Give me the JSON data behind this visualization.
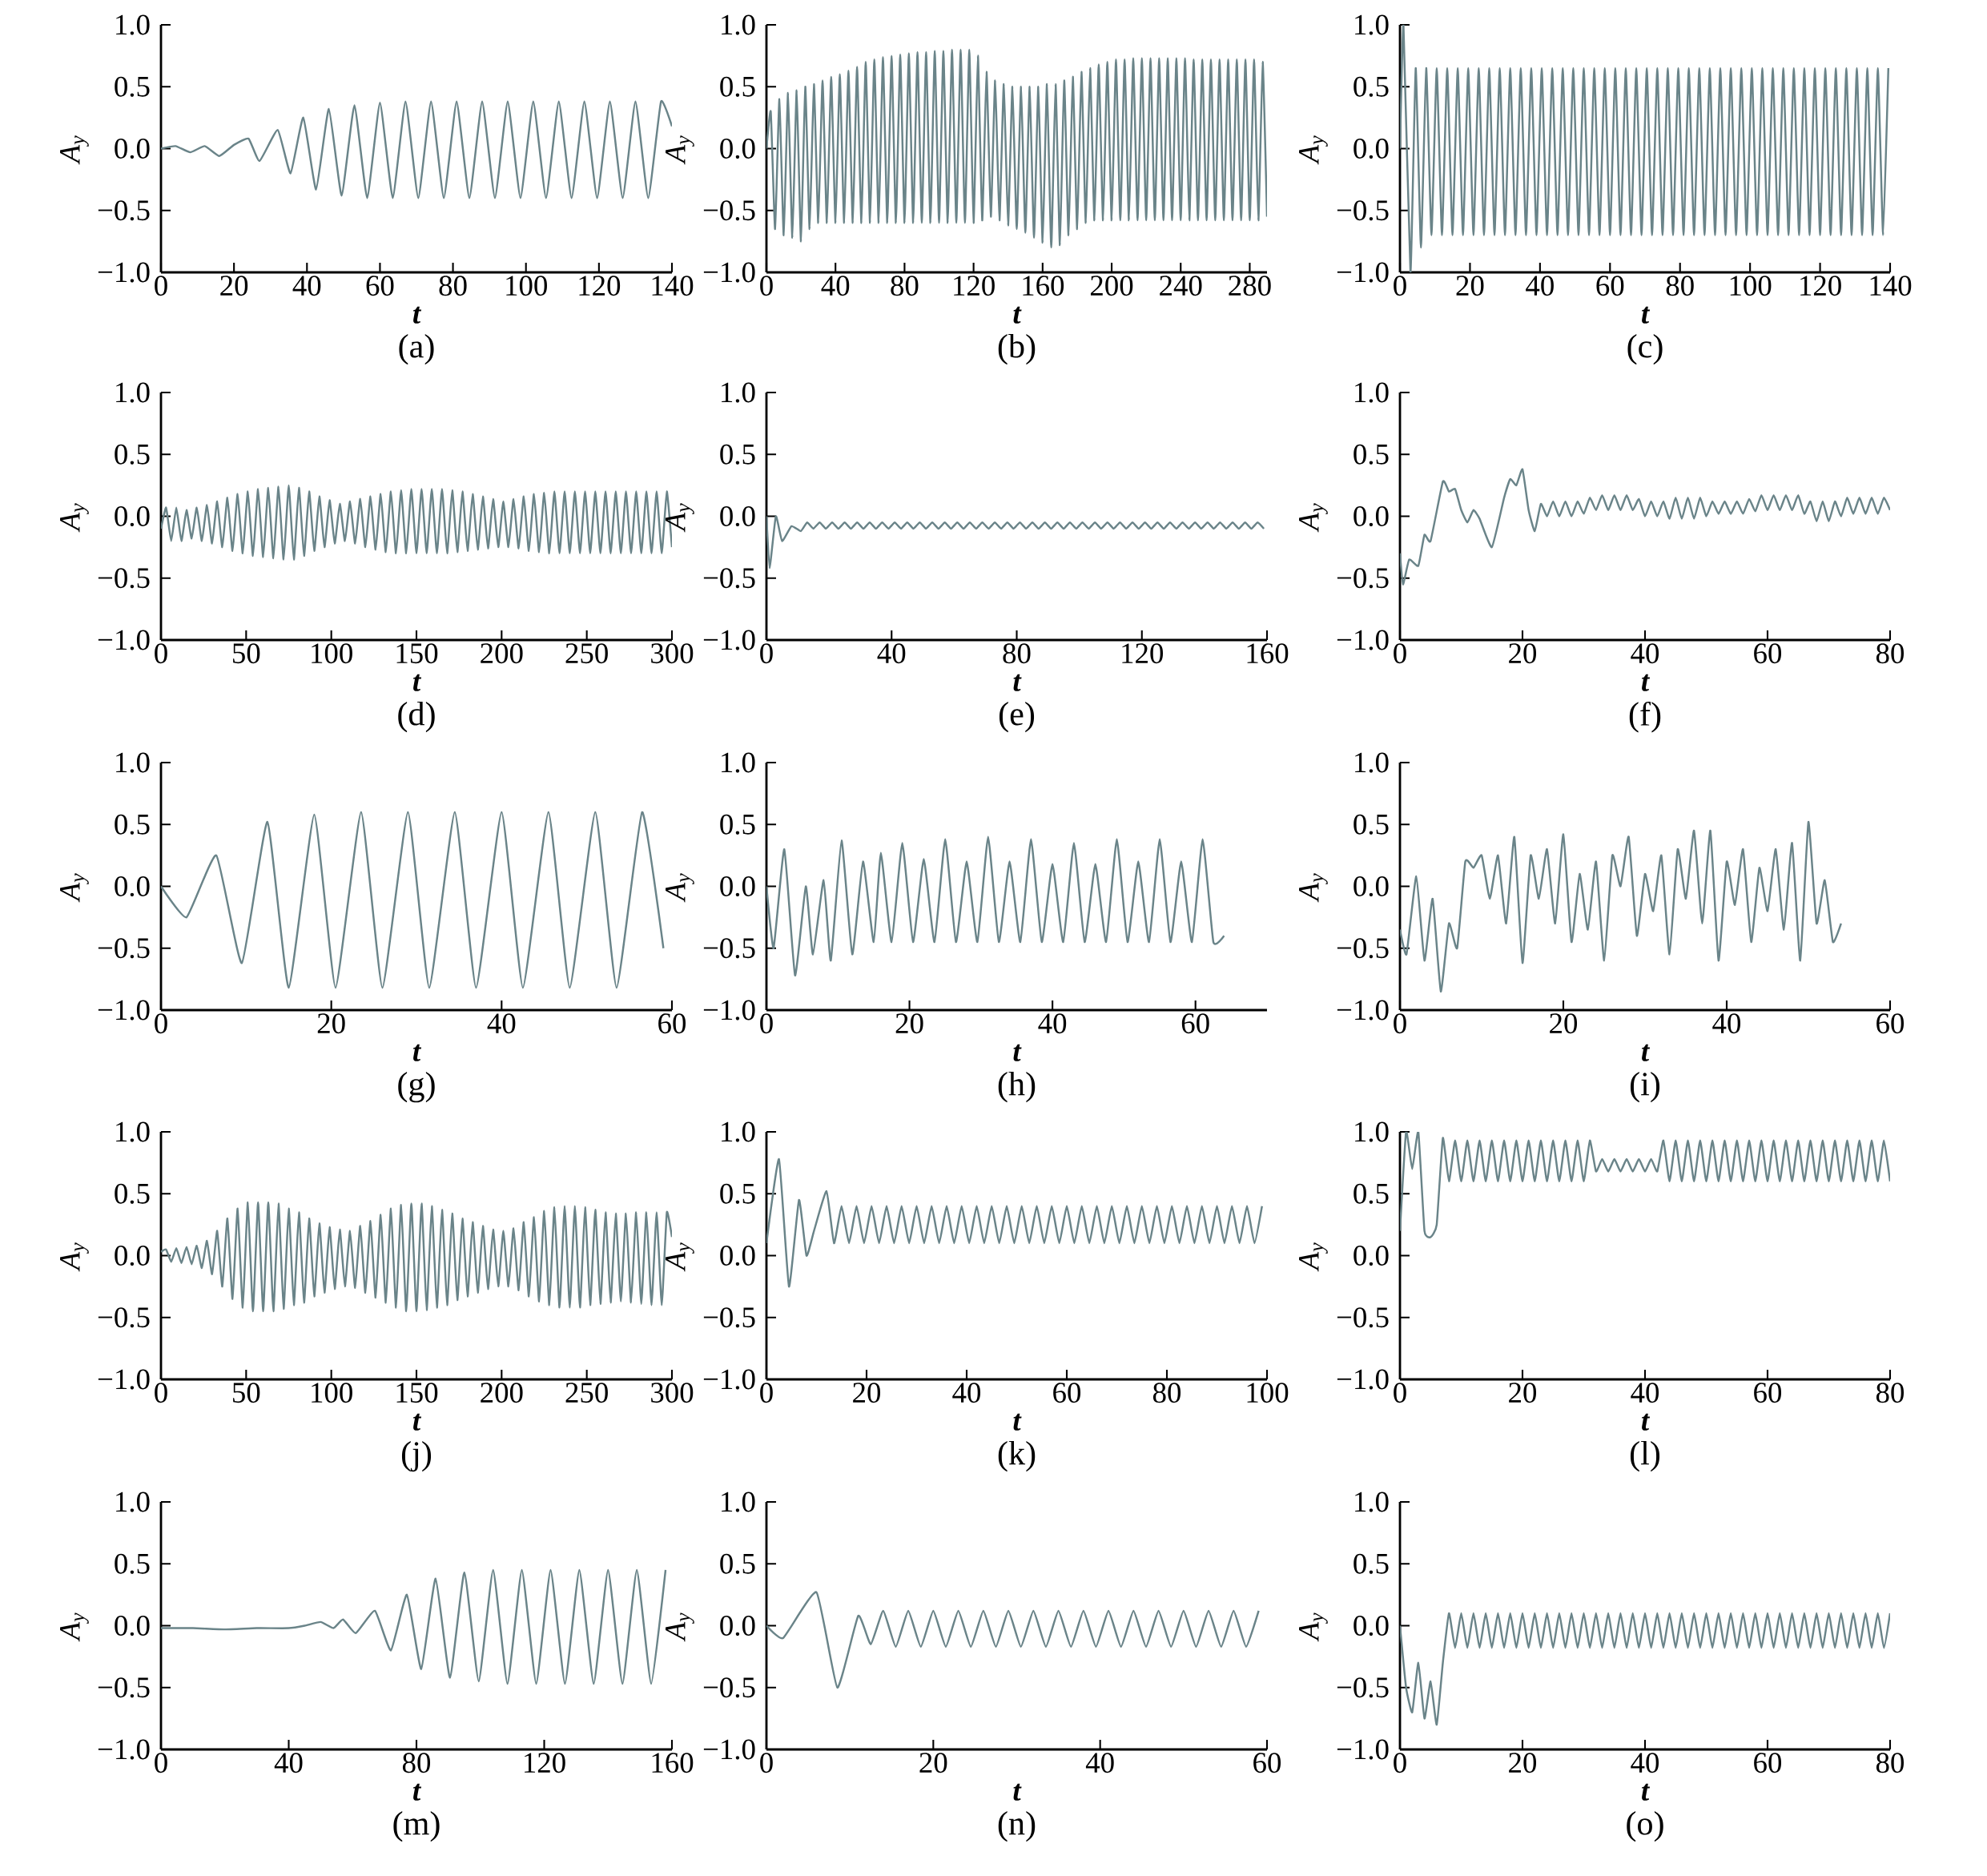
{
  "chart_data": [
    {
      "type": "line",
      "title": "(a)",
      "xlabel": "t",
      "ylabel": "A$_{y}$",
      "color": "#6a8489",
      "xlim": [
        0,
        140
      ],
      "xticks": [
        0,
        20,
        40,
        60,
        80,
        100,
        120,
        140
      ],
      "ylim": [
        -1,
        1
      ],
      "yticks": [
        {
          "value": -1,
          "label": "−1.0"
        },
        {
          "value": -0.5,
          "label": "−0.5"
        },
        {
          "value": 0,
          "label": "0.0"
        },
        {
          "value": 0.5,
          "label": "0.5"
        },
        {
          "value": 1,
          "label": "1.0"
        }
      ],
      "x": [
        0,
        4,
        8,
        12,
        16,
        20,
        24,
        27,
        32,
        35.5,
        39,
        42.5,
        46,
        49.5,
        53,
        56.5,
        60,
        63.5,
        67,
        70.5,
        74,
        77.5,
        81,
        84.5,
        88,
        91.5,
        95,
        98.5,
        102,
        105.5,
        109,
        112.5,
        116,
        119.5,
        123,
        126.5,
        130,
        133.5,
        137,
        140
      ],
      "values": [
        0,
        0.02,
        -0.03,
        0.02,
        -0.06,
        0.03,
        0.08,
        -0.1,
        0.15,
        -0.2,
        0.25,
        -0.33,
        0.32,
        -0.38,
        0.35,
        -0.4,
        0.37,
        -0.4,
        0.38,
        -0.4,
        0.38,
        -0.4,
        0.38,
        -0.4,
        0.38,
        -0.4,
        0.38,
        -0.4,
        0.38,
        -0.4,
        0.38,
        -0.4,
        0.38,
        -0.4,
        0.38,
        -0.4,
        0.38,
        -0.4,
        0.38,
        0.18
      ]
    },
    {
      "type": "line",
      "title": "(b)",
      "xlabel": "t",
      "ylabel": "A$_{y}$",
      "color": "#6a8489",
      "xlim": [
        0,
        290
      ],
      "xticks": [
        0,
        40,
        80,
        120,
        160,
        200,
        240,
        280
      ],
      "ylim": [
        -1,
        1
      ],
      "yticks": [
        {
          "value": -1,
          "label": "−1.0"
        },
        {
          "value": -0.5,
          "label": "−0.5"
        },
        {
          "value": 0,
          "label": "0.0"
        },
        {
          "value": 0.5,
          "label": "0.5"
        },
        {
          "value": 1,
          "label": "1.0"
        }
      ],
      "x": [
        0,
        2.5,
        5,
        7.5,
        10,
        12.5,
        15,
        17.5,
        20,
        22.5,
        25,
        27.5,
        30,
        32.5,
        35,
        37.5,
        40,
        42.5,
        45,
        47.5,
        50,
        52.5,
        55,
        57.5,
        60,
        62.5,
        65,
        67.5,
        70,
        72.5,
        75,
        77.5,
        80,
        82.5,
        85,
        87.5,
        90,
        92.5,
        95,
        97.5,
        100,
        102.5,
        105,
        107.5,
        110,
        112.5,
        115,
        117.5,
        120,
        122.5,
        125,
        127.5,
        130,
        132.5,
        135,
        137.5,
        140,
        142.5,
        145,
        147.5,
        150,
        152.5,
        155,
        157.5,
        160,
        162.5,
        165,
        167.5,
        170,
        172.5,
        175,
        177.5,
        180,
        182.5,
        185,
        187.5,
        190,
        192.5,
        195,
        197.5,
        200,
        202.5,
        205,
        207.5,
        210,
        212.5,
        215,
        217.5,
        220,
        222.5,
        225,
        227.5,
        230,
        232.5,
        235,
        237.5,
        240,
        242.5,
        245,
        247.5,
        250,
        252.5,
        255,
        257.5,
        260,
        262.5,
        265,
        267.5,
        270,
        272.5,
        275,
        277.5,
        280,
        282.5,
        285,
        287.5,
        290
      ],
      "values": [
        0,
        0.3,
        -0.65,
        0.4,
        -0.7,
        0.45,
        -0.72,
        0.47,
        -0.75,
        0.5,
        -0.65,
        0.52,
        -0.6,
        0.55,
        -0.6,
        0.58,
        -0.6,
        0.6,
        -0.6,
        0.63,
        -0.6,
        0.66,
        -0.6,
        0.7,
        -0.6,
        0.72,
        -0.6,
        0.74,
        -0.6,
        0.75,
        -0.6,
        0.76,
        -0.6,
        0.77,
        -0.6,
        0.78,
        -0.6,
        0.78,
        -0.6,
        0.79,
        -0.6,
        0.79,
        -0.6,
        0.8,
        -0.6,
        0.8,
        -0.6,
        0.8,
        -0.6,
        0.75,
        -0.58,
        0.62,
        -0.55,
        0.55,
        -0.58,
        0.52,
        -0.62,
        0.5,
        -0.65,
        0.5,
        -0.68,
        0.5,
        -0.72,
        0.5,
        -0.76,
        0.52,
        -0.8,
        0.52,
        -0.78,
        0.55,
        -0.7,
        0.58,
        -0.65,
        0.62,
        -0.6,
        0.65,
        -0.58,
        0.68,
        -0.58,
        0.7,
        -0.58,
        0.72,
        -0.58,
        0.72,
        -0.58,
        0.73,
        -0.58,
        0.73,
        -0.58,
        0.73,
        -0.58,
        0.73,
        -0.58,
        0.73,
        -0.58,
        0.73,
        -0.58,
        0.73,
        -0.58,
        0.72,
        -0.58,
        0.72,
        -0.58,
        0.72,
        -0.58,
        0.72,
        -0.58,
        0.72,
        -0.58,
        0.72,
        -0.58,
        0.72,
        -0.58,
        0.72,
        -0.58,
        0.7,
        -0.55
      ]
    },
    {
      "type": "line",
      "title": "(c)",
      "xlabel": "t",
      "ylabel": "A$_{y}$",
      "color": "#6a8489",
      "xlim": [
        0,
        140
      ],
      "xticks": [
        0,
        20,
        40,
        60,
        80,
        100,
        120,
        140
      ],
      "ylim": [
        -1,
        1
      ],
      "yticks": [
        {
          "value": -1,
          "label": "−1.0"
        },
        {
          "value": -0.5,
          "label": "−0.5"
        },
        {
          "value": 0,
          "label": "0.0"
        },
        {
          "value": 0.5,
          "label": "0.5"
        },
        {
          "value": 1,
          "label": "1.0"
        }
      ],
      "x": [
        0,
        1,
        3,
        4.5,
        6,
        7.5,
        9,
        10.5,
        12,
        13.5,
        15,
        16.5,
        18,
        19.5,
        21,
        22.5,
        24,
        25.5,
        27,
        28.5,
        30,
        31.5,
        33,
        34.5,
        36,
        37.5,
        39,
        40.5,
        42,
        43.5,
        45,
        46.5,
        48,
        49.5,
        51,
        52.5,
        54,
        55.5,
        57,
        58.5,
        60,
        61.5,
        63,
        64.5,
        66,
        67.5,
        69,
        70.5,
        72,
        73.5,
        75,
        76.5,
        78,
        79.5,
        81,
        82.5,
        84,
        85.5,
        87,
        88.5,
        90,
        91.5,
        93,
        94.5,
        96,
        97.5,
        99,
        100.5,
        102,
        103.5,
        105,
        106.5,
        108,
        109.5,
        111,
        112.5,
        114,
        115.5,
        117,
        118.5,
        120,
        121.5,
        123,
        124.5,
        126,
        127.5,
        129,
        130.5,
        132,
        133.5,
        135,
        136.5,
        138,
        139.5
      ],
      "values": [
        0,
        1,
        -1,
        0.65,
        -0.8,
        0.65,
        -0.7,
        0.65,
        -0.7,
        0.65,
        -0.7,
        0.65,
        -0.7,
        0.65,
        -0.7,
        0.65,
        -0.7,
        0.65,
        -0.7,
        0.65,
        -0.7,
        0.65,
        -0.7,
        0.65,
        -0.7,
        0.65,
        -0.7,
        0.65,
        -0.7,
        0.65,
        -0.7,
        0.65,
        -0.7,
        0.65,
        -0.7,
        0.65,
        -0.7,
        0.65,
        -0.7,
        0.65,
        -0.7,
        0.65,
        -0.7,
        0.65,
        -0.7,
        0.65,
        -0.7,
        0.65,
        -0.7,
        0.65,
        -0.7,
        0.65,
        -0.7,
        0.65,
        -0.7,
        0.65,
        -0.7,
        0.65,
        -0.7,
        0.65,
        -0.7,
        0.65,
        -0.7,
        0.65,
        -0.7,
        0.65,
        -0.7,
        0.65,
        -0.7,
        0.65,
        -0.7,
        0.65,
        -0.7,
        0.65,
        -0.7,
        0.65,
        -0.7,
        0.65,
        -0.7,
        0.65,
        -0.7,
        0.65,
        -0.7,
        0.65,
        -0.7,
        0.65,
        -0.7,
        0.65,
        -0.7,
        0.65,
        -0.7,
        0.65,
        -0.7,
        0.65
      ]
    },
    {
      "type": "line",
      "title": "(d)",
      "xlabel": "t",
      "ylabel": "A$_{y}$",
      "color": "#6a8489",
      "xlim": [
        0,
        300
      ],
      "xticks": [
        0,
        50,
        100,
        150,
        200,
        250,
        300
      ],
      "ylim": [
        -1,
        1
      ],
      "yticks": [
        {
          "value": -1,
          "label": "−1.0"
        },
        {
          "value": -0.5,
          "label": "−0.5"
        },
        {
          "value": 0,
          "label": "0.0"
        },
        {
          "value": 0.5,
          "label": "0.5"
        },
        {
          "value": 1,
          "label": "1.0"
        }
      ],
      "x": [
        0,
        3,
        6,
        9,
        12,
        15,
        18,
        21,
        24,
        27,
        30,
        33,
        36,
        39,
        42,
        45,
        48,
        51,
        54,
        57,
        60,
        63,
        66,
        69,
        72,
        75,
        78,
        81,
        84,
        87,
        90,
        93,
        96,
        99,
        102,
        105,
        108,
        111,
        114,
        117,
        120,
        123,
        126,
        129,
        132,
        135,
        138,
        141,
        144,
        147,
        150,
        153,
        156,
        159,
        162,
        165,
        168,
        171,
        174,
        177,
        180,
        183,
        186,
        189,
        192,
        195,
        198,
        201,
        204,
        207,
        210,
        213,
        216,
        219,
        222,
        225,
        228,
        231,
        234,
        237,
        240,
        243,
        246,
        249,
        252,
        255,
        258,
        261,
        264,
        267,
        270,
        273,
        276,
        279,
        282,
        285,
        288,
        291,
        294,
        297,
        300
      ],
      "values": [
        -0.1,
        0.07,
        -0.2,
        0.07,
        -0.2,
        0.05,
        -0.18,
        0.07,
        -0.2,
        0.09,
        -0.22,
        0.12,
        -0.25,
        0.15,
        -0.28,
        0.18,
        -0.3,
        0.2,
        -0.32,
        0.22,
        -0.33,
        0.23,
        -0.34,
        0.24,
        -0.35,
        0.25,
        -0.35,
        0.23,
        -0.32,
        0.2,
        -0.28,
        0.16,
        -0.25,
        0.13,
        -0.22,
        0.1,
        -0.2,
        0.12,
        -0.22,
        0.14,
        -0.25,
        0.16,
        -0.27,
        0.18,
        -0.29,
        0.2,
        -0.3,
        0.21,
        -0.3,
        0.22,
        -0.3,
        0.22,
        -0.3,
        0.22,
        -0.3,
        0.22,
        -0.3,
        0.21,
        -0.29,
        0.2,
        -0.28,
        0.18,
        -0.27,
        0.16,
        -0.26,
        0.14,
        -0.25,
        0.12,
        -0.25,
        0.14,
        -0.26,
        0.16,
        -0.28,
        0.18,
        -0.29,
        0.19,
        -0.3,
        0.2,
        -0.3,
        0.2,
        -0.3,
        0.2,
        -0.3,
        0.2,
        -0.3,
        0.2,
        -0.3,
        0.2,
        -0.3,
        0.2,
        -0.3,
        0.2,
        -0.3,
        0.2,
        -0.3,
        0.2,
        -0.3,
        0.2,
        -0.3,
        0.2,
        -0.25
      ]
    },
    {
      "type": "line",
      "title": "(e)",
      "xlabel": "t",
      "ylabel": "A$_{y}$",
      "color": "#6a8489",
      "xlim": [
        0,
        160
      ],
      "xticks": [
        0,
        40,
        80,
        120,
        160
      ],
      "ylim": [
        -1,
        1
      ],
      "yticks": [
        {
          "value": -1,
          "label": "−1.0"
        },
        {
          "value": -0.5,
          "label": "−0.5"
        },
        {
          "value": 0,
          "label": "0.0"
        },
        {
          "value": 0.5,
          "label": "0.5"
        },
        {
          "value": 1,
          "label": "1.0"
        }
      ],
      "x": [
        0,
        1,
        3,
        5,
        8,
        11,
        13,
        15,
        17,
        19,
        21,
        23,
        25,
        27,
        29,
        31,
        33,
        35,
        37,
        39,
        41,
        43,
        45,
        47,
        49,
        51,
        53,
        55,
        57,
        59,
        61,
        63,
        65,
        67,
        69,
        71,
        73,
        75,
        77,
        79,
        81,
        83,
        85,
        87,
        89,
        91,
        93,
        95,
        97,
        99,
        101,
        103,
        105,
        107,
        109,
        111,
        113,
        115,
        117,
        119,
        121,
        123,
        125,
        127,
        129,
        131,
        133,
        135,
        137,
        139,
        141,
        143,
        145,
        147,
        149,
        151,
        153,
        155,
        157,
        159
      ],
      "values": [
        0,
        -0.42,
        0,
        -0.2,
        -0.08,
        -0.12,
        -0.05,
        -0.1,
        -0.05,
        -0.1,
        -0.05,
        -0.1,
        -0.05,
        -0.1,
        -0.05,
        -0.1,
        -0.05,
        -0.1,
        -0.05,
        -0.1,
        -0.05,
        -0.1,
        -0.05,
        -0.1,
        -0.05,
        -0.1,
        -0.05,
        -0.1,
        -0.05,
        -0.1,
        -0.05,
        -0.1,
        -0.05,
        -0.1,
        -0.05,
        -0.1,
        -0.05,
        -0.1,
        -0.05,
        -0.1,
        -0.05,
        -0.1,
        -0.05,
        -0.1,
        -0.05,
        -0.1,
        -0.05,
        -0.1,
        -0.05,
        -0.1,
        -0.05,
        -0.1,
        -0.05,
        -0.1,
        -0.05,
        -0.1,
        -0.05,
        -0.1,
        -0.05,
        -0.1,
        -0.05,
        -0.1,
        -0.05,
        -0.1,
        -0.05,
        -0.1,
        -0.05,
        -0.1,
        -0.05,
        -0.1,
        -0.05,
        -0.1,
        -0.05,
        -0.1,
        -0.05,
        -0.1,
        -0.05,
        -0.1,
        -0.05,
        -0.1
      ]
    },
    {
      "type": "line",
      "title": "(f)",
      "xlabel": "t",
      "ylabel": "A$_{y}$",
      "color": "#6a8489",
      "xlim": [
        0,
        80
      ],
      "xticks": [
        0,
        20,
        40,
        60,
        80
      ],
      "ylim": [
        -1,
        1
      ],
      "yticks": [
        {
          "value": -1,
          "label": "−1.0"
        },
        {
          "value": -0.5,
          "label": "−0.5"
        },
        {
          "value": 0,
          "label": "0.0"
        },
        {
          "value": 0.5,
          "label": "0.5"
        },
        {
          "value": 1,
          "label": "1.0"
        }
      ],
      "x": [
        0,
        0.5,
        1.5,
        3,
        4,
        5,
        7,
        8,
        9,
        10,
        11,
        12,
        13,
        15,
        17,
        18,
        19,
        20,
        21,
        22,
        23,
        24,
        25,
        26,
        27,
        28,
        29,
        30,
        31,
        32,
        33,
        34,
        35,
        36,
        37,
        38,
        39,
        40,
        41,
        42,
        43,
        44,
        45,
        46,
        47,
        48,
        49,
        50,
        51,
        52,
        53,
        54,
        55,
        56,
        57,
        58,
        59,
        60,
        61,
        62,
        63,
        64,
        65,
        66,
        67,
        68,
        69,
        70,
        71,
        72,
        73,
        74,
        75,
        76,
        77,
        78,
        79,
        80
      ],
      "values": [
        -0.3,
        -0.55,
        -0.35,
        -0.4,
        -0.15,
        -0.2,
        0.28,
        0.2,
        0.22,
        0.05,
        -0.05,
        0.05,
        -0.02,
        -0.25,
        0.15,
        0.3,
        0.25,
        0.38,
        0.05,
        -0.12,
        0.1,
        0,
        0.12,
        0,
        0.12,
        0,
        0.12,
        0.02,
        0.15,
        0.05,
        0.17,
        0.05,
        0.17,
        0.05,
        0.17,
        0.05,
        0.14,
        0,
        0.12,
        0,
        0.12,
        -0.02,
        0.15,
        -0.02,
        0.15,
        -0.02,
        0.15,
        0,
        0.12,
        0.02,
        0.12,
        0.02,
        0.12,
        0.02,
        0.14,
        0.04,
        0.17,
        0.05,
        0.17,
        0.05,
        0.17,
        0.05,
        0.17,
        0.02,
        0.12,
        -0.04,
        0.12,
        -0.04,
        0.12,
        0,
        0.15,
        0.02,
        0.15,
        0.02,
        0.15,
        0.02,
        0.15,
        0.05
      ]
    },
    {
      "type": "line",
      "title": "(g)",
      "xlabel": "t",
      "ylabel": "A$_{y}$",
      "color": "#6a8489",
      "xlim": [
        0,
        60
      ],
      "xticks": [
        0,
        20,
        40,
        60
      ],
      "ylim": [
        -1,
        1
      ],
      "yticks": [
        {
          "value": -1,
          "label": "−1.0"
        },
        {
          "value": -0.5,
          "label": "−0.5"
        },
        {
          "value": 0,
          "label": "0.0"
        },
        {
          "value": 0.5,
          "label": "0.5"
        },
        {
          "value": 1,
          "label": "1.0"
        }
      ],
      "x": [
        0,
        3,
        6.5,
        9.5,
        12.5,
        15,
        18,
        20.5,
        23.5,
        26,
        29,
        31.5,
        34.5,
        37,
        40,
        42.5,
        45.5,
        48,
        51,
        53.5,
        56.5,
        59
      ],
      "values": [
        0,
        -0.25,
        0.25,
        -0.62,
        0.52,
        -0.82,
        0.58,
        -0.82,
        0.6,
        -0.82,
        0.6,
        -0.82,
        0.6,
        -0.82,
        0.6,
        -0.82,
        0.6,
        -0.82,
        0.6,
        -0.82,
        0.6,
        -0.5
      ]
    },
    {
      "type": "line",
      "title": "(h)",
      "xlabel": "t",
      "ylabel": "A$_{y}$",
      "color": "#6a8489",
      "xlim": [
        0,
        70
      ],
      "xticks": [
        0,
        20,
        40,
        60
      ],
      "ylim": [
        -1,
        1
      ],
      "yticks": [
        {
          "value": -1,
          "label": "−1.0"
        },
        {
          "value": -0.5,
          "label": "−0.5"
        },
        {
          "value": 0,
          "label": "0.0"
        },
        {
          "value": 0.5,
          "label": "0.5"
        },
        {
          "value": 1,
          "label": "1.0"
        }
      ],
      "x": [
        0,
        1,
        2.5,
        4,
        5.5,
        6.5,
        8,
        9,
        10.5,
        12,
        13.5,
        15,
        16,
        17.5,
        19,
        20.5,
        22,
        23.5,
        25,
        26.5,
        28,
        29.5,
        31,
        32.5,
        34,
        35.5,
        37,
        38.5,
        40,
        41.5,
        43,
        44.5,
        46,
        47.5,
        49,
        50.5,
        52,
        53.5,
        55,
        56.5,
        58,
        59.5,
        61,
        62.5,
        64
      ],
      "values": [
        0,
        -0.5,
        0.3,
        -0.72,
        0,
        -0.55,
        0.05,
        -0.6,
        0.37,
        -0.55,
        0.2,
        -0.45,
        0.27,
        -0.45,
        0.35,
        -0.45,
        0.22,
        -0.45,
        0.38,
        -0.45,
        0.2,
        -0.45,
        0.4,
        -0.45,
        0.2,
        -0.45,
        0.38,
        -0.45,
        0.18,
        -0.45,
        0.35,
        -0.45,
        0.18,
        -0.45,
        0.38,
        -0.45,
        0.2,
        -0.45,
        0.38,
        -0.45,
        0.2,
        -0.45,
        0.38,
        -0.45,
        -0.4
      ]
    },
    {
      "type": "line",
      "title": "(i)",
      "xlabel": "t",
      "ylabel": "A$_{y}$",
      "color": "#6a8489",
      "xlim": [
        0,
        60
      ],
      "xticks": [
        0,
        20,
        40,
        60
      ],
      "ylim": [
        -1,
        1
      ],
      "yticks": [
        {
          "value": -1,
          "label": "−1.0"
        },
        {
          "value": -0.5,
          "label": "−0.5"
        },
        {
          "value": 0,
          "label": "0.0"
        },
        {
          "value": 0.5,
          "label": "0.5"
        },
        {
          "value": 1,
          "label": "1.0"
        }
      ],
      "x": [
        0,
        0.8,
        2,
        3,
        4,
        5,
        6,
        7,
        8,
        9,
        10,
        11,
        12,
        13,
        14,
        15,
        16,
        17,
        18,
        19,
        20,
        21,
        22,
        23,
        24,
        25,
        26,
        27,
        28,
        29,
        30,
        31,
        32,
        33,
        34,
        35,
        36,
        37,
        38,
        39,
        40,
        41,
        42,
        43,
        44,
        45,
        46,
        47,
        48,
        49,
        50,
        51,
        52,
        53,
        54
      ],
      "values": [
        -0.35,
        -0.55,
        0.08,
        -0.6,
        -0.1,
        -0.85,
        -0.3,
        -0.5,
        0.2,
        0.15,
        0.25,
        -0.1,
        0.25,
        -0.3,
        0.4,
        -0.62,
        0.25,
        -0.1,
        0.3,
        -0.3,
        0.42,
        -0.45,
        0.1,
        -0.35,
        0.2,
        -0.6,
        0.25,
        0,
        0.4,
        -0.4,
        0.1,
        -0.2,
        0.25,
        -0.55,
        0.3,
        -0.1,
        0.45,
        -0.3,
        0.45,
        -0.6,
        0.2,
        -0.15,
        0.3,
        -0.45,
        0.15,
        -0.2,
        0.3,
        -0.35,
        0.35,
        -0.6,
        0.52,
        -0.3,
        0.05,
        -0.45,
        -0.3
      ]
    },
    {
      "type": "line",
      "title": "(j)",
      "xlabel": "t",
      "ylabel": "A$_{y}$",
      "color": "#6a8489",
      "xlim": [
        0,
        300
      ],
      "xticks": [
        0,
        50,
        100,
        150,
        200,
        250,
        300
      ],
      "ylim": [
        -1,
        1
      ],
      "yticks": [
        {
          "value": -1,
          "label": "−1.0"
        },
        {
          "value": -0.5,
          "label": "−0.5"
        },
        {
          "value": 0,
          "label": "0.0"
        },
        {
          "value": 0.5,
          "label": "0.5"
        },
        {
          "value": 1,
          "label": "1.0"
        }
      ],
      "x": [
        0,
        3,
        6,
        9,
        12,
        15,
        18,
        21,
        24,
        27,
        30,
        33,
        36,
        39,
        42,
        45,
        48,
        51,
        54,
        57,
        60,
        63,
        66,
        69,
        72,
        75,
        78,
        81,
        84,
        87,
        90,
        93,
        96,
        99,
        102,
        105,
        108,
        111,
        114,
        117,
        120,
        123,
        126,
        129,
        132,
        135,
        138,
        141,
        144,
        147,
        150,
        153,
        156,
        159,
        162,
        165,
        168,
        171,
        174,
        177,
        180,
        183,
        186,
        189,
        192,
        195,
        198,
        201,
        204,
        207,
        210,
        213,
        216,
        219,
        222,
        225,
        228,
        231,
        234,
        237,
        240,
        243,
        246,
        249,
        252,
        255,
        258,
        261,
        264,
        267,
        270,
        273,
        276,
        279,
        282,
        285,
        288,
        291,
        294,
        297,
        300
      ],
      "values": [
        0.03,
        0.05,
        -0.05,
        0.06,
        -0.06,
        0.07,
        -0.07,
        0.08,
        -0.1,
        0.12,
        -0.15,
        0.2,
        -0.25,
        0.3,
        -0.35,
        0.38,
        -0.42,
        0.43,
        -0.45,
        0.43,
        -0.45,
        0.43,
        -0.45,
        0.42,
        -0.43,
        0.38,
        -0.4,
        0.35,
        -0.38,
        0.3,
        -0.33,
        0.26,
        -0.3,
        0.23,
        -0.27,
        0.21,
        -0.25,
        0.2,
        -0.26,
        0.24,
        -0.3,
        0.28,
        -0.34,
        0.33,
        -0.38,
        0.38,
        -0.42,
        0.41,
        -0.45,
        0.42,
        -0.45,
        0.42,
        -0.44,
        0.4,
        -0.42,
        0.37,
        -0.4,
        0.34,
        -0.36,
        0.3,
        -0.33,
        0.27,
        -0.3,
        0.24,
        -0.27,
        0.21,
        -0.25,
        0.2,
        -0.25,
        0.22,
        -0.28,
        0.27,
        -0.33,
        0.31,
        -0.37,
        0.36,
        -0.4,
        0.39,
        -0.42,
        0.4,
        -0.42,
        0.4,
        -0.42,
        0.39,
        -0.4,
        0.37,
        -0.39,
        0.35,
        -0.38,
        0.34,
        -0.37,
        0.34,
        -0.38,
        0.35,
        -0.39,
        0.35,
        -0.4,
        0.35,
        -0.4,
        0.35,
        0.15
      ]
    },
    {
      "type": "line",
      "title": "(k)",
      "xlabel": "t",
      "ylabel": "A$_{y}$",
      "color": "#6a8489",
      "xlim": [
        0,
        100
      ],
      "xticks": [
        0,
        20,
        40,
        60,
        80,
        100
      ],
      "ylim": [
        -1,
        1
      ],
      "yticks": [
        {
          "value": -1,
          "label": "−1.0"
        },
        {
          "value": -0.5,
          "label": "−0.5"
        },
        {
          "value": 0,
          "label": "0.0"
        },
        {
          "value": 0.5,
          "label": "0.5"
        },
        {
          "value": 1,
          "label": "1.0"
        }
      ],
      "x": [
        0,
        2.5,
        4.5,
        6.5,
        8,
        9.5,
        12,
        13.5,
        15,
        16.5,
        18,
        19.5,
        21,
        22.5,
        24,
        25.5,
        27,
        28.5,
        30,
        31.5,
        33,
        34.5,
        36,
        37.5,
        39,
        40.5,
        42,
        43.5,
        45,
        46.5,
        48,
        49.5,
        51,
        52.5,
        54,
        55.5,
        57,
        58.5,
        60,
        61.5,
        63,
        64.5,
        66,
        67.5,
        69,
        70.5,
        72,
        73.5,
        75,
        76.5,
        78,
        79.5,
        81,
        82.5,
        84,
        85.5,
        87,
        88.5,
        90,
        91.5,
        93,
        94.5,
        96,
        97.5,
        99
      ],
      "values": [
        0.1,
        0.78,
        -0.25,
        0.45,
        0,
        0.2,
        0.52,
        0.1,
        0.4,
        0.1,
        0.4,
        0.1,
        0.4,
        0.1,
        0.4,
        0.1,
        0.4,
        0.1,
        0.4,
        0.1,
        0.4,
        0.1,
        0.4,
        0.1,
        0.4,
        0.1,
        0.4,
        0.1,
        0.4,
        0.1,
        0.4,
        0.1,
        0.4,
        0.1,
        0.4,
        0.1,
        0.4,
        0.1,
        0.4,
        0.1,
        0.4,
        0.1,
        0.4,
        0.1,
        0.4,
        0.1,
        0.4,
        0.1,
        0.4,
        0.1,
        0.4,
        0.1,
        0.4,
        0.1,
        0.4,
        0.1,
        0.4,
        0.1,
        0.4,
        0.1,
        0.4,
        0.1,
        0.4,
        0.1,
        0.4
      ]
    },
    {
      "type": "line",
      "title": "(l)",
      "xlabel": "t",
      "ylabel": "A$_{y}$",
      "color": "#6a8489",
      "xlim": [
        0,
        80
      ],
      "xticks": [
        0,
        20,
        40,
        60,
        80
      ],
      "ylim": [
        -1,
        1
      ],
      "yticks": [
        {
          "value": -1,
          "label": "−1.0"
        },
        {
          "value": -0.5,
          "label": "−0.5"
        },
        {
          "value": 0,
          "label": "0.0"
        },
        {
          "value": 0.5,
          "label": "0.5"
        },
        {
          "value": 1,
          "label": "1.0"
        }
      ],
      "x": [
        0,
        1,
        2,
        3,
        4,
        5,
        6,
        7,
        8,
        9,
        10,
        11,
        12,
        13,
        14,
        15,
        16,
        17,
        18,
        19,
        20,
        21,
        22,
        23,
        24,
        25,
        26,
        27,
        28,
        29,
        30,
        31,
        32,
        33,
        34,
        35,
        36,
        37,
        38,
        39,
        40,
        41,
        42,
        43,
        44,
        45,
        46,
        47,
        48,
        49,
        50,
        51,
        52,
        53,
        54,
        55,
        56,
        57,
        58,
        59,
        60,
        61,
        62,
        63,
        64,
        65,
        66,
        67,
        68,
        69,
        70,
        71,
        72,
        73,
        74,
        75,
        76,
        77,
        78,
        79,
        80
      ],
      "values": [
        0.2,
        1,
        0.7,
        1,
        0.2,
        0.15,
        0.25,
        0.95,
        0.6,
        0.93,
        0.6,
        0.93,
        0.6,
        0.93,
        0.6,
        0.93,
        0.6,
        0.93,
        0.6,
        0.93,
        0.6,
        0.93,
        0.6,
        0.93,
        0.6,
        0.93,
        0.6,
        0.93,
        0.6,
        0.93,
        0.6,
        0.93,
        0.68,
        0.78,
        0.68,
        0.78,
        0.68,
        0.78,
        0.68,
        0.78,
        0.68,
        0.78,
        0.68,
        0.93,
        0.6,
        0.93,
        0.6,
        0.93,
        0.6,
        0.93,
        0.6,
        0.93,
        0.6,
        0.93,
        0.6,
        0.93,
        0.6,
        0.93,
        0.6,
        0.93,
        0.6,
        0.93,
        0.6,
        0.93,
        0.6,
        0.93,
        0.6,
        0.93,
        0.6,
        0.93,
        0.6,
        0.93,
        0.6,
        0.93,
        0.6,
        0.93,
        0.6,
        0.93,
        0.6,
        0.93,
        0.6
      ]
    },
    {
      "type": "line",
      "title": "(m)",
      "xlabel": "t",
      "ylabel": "A$_{y}$",
      "color": "#6a8489",
      "xlim": [
        0,
        160
      ],
      "xticks": [
        0,
        40,
        80,
        120,
        160
      ],
      "ylim": [
        -1,
        1
      ],
      "yticks": [
        {
          "value": -1,
          "label": "−1.0"
        },
        {
          "value": -0.5,
          "label": "−0.5"
        },
        {
          "value": 0,
          "label": "0.0"
        },
        {
          "value": 0.5,
          "label": "0.5"
        },
        {
          "value": 1,
          "label": "1.0"
        }
      ],
      "x": [
        0,
        10,
        20,
        30,
        40,
        45,
        50,
        54,
        57,
        61,
        67,
        72,
        77,
        81.5,
        86,
        90.5,
        95,
        99.5,
        104,
        108.5,
        113,
        117.5,
        122,
        126.5,
        131,
        135.5,
        140,
        144.5,
        149,
        153.5,
        158
      ],
      "values": [
        -0.02,
        -0.02,
        -0.03,
        -0.02,
        -0.02,
        0,
        0.03,
        -0.02,
        0.05,
        -0.06,
        0.12,
        -0.2,
        0.25,
        -0.35,
        0.38,
        -0.42,
        0.43,
        -0.45,
        0.45,
        -0.47,
        0.45,
        -0.47,
        0.45,
        -0.47,
        0.45,
        -0.47,
        0.45,
        -0.47,
        0.45,
        -0.47,
        0.45
      ]
    },
    {
      "type": "line",
      "title": "(n)",
      "xlabel": "t",
      "ylabel": "A$_{y}$",
      "color": "#6a8489",
      "xlim": [
        0,
        60
      ],
      "xticks": [
        0,
        20,
        40,
        60
      ],
      "ylim": [
        -1,
        1
      ],
      "yticks": [
        {
          "value": -1,
          "label": "−1.0"
        },
        {
          "value": -0.5,
          "label": "−0.5"
        },
        {
          "value": 0,
          "label": "0.0"
        },
        {
          "value": 0.5,
          "label": "0.5"
        },
        {
          "value": 1,
          "label": "1.0"
        }
      ],
      "x": [
        0,
        2,
        6,
        8.5,
        11,
        12.5,
        14,
        15.5,
        17,
        18.5,
        20,
        21.5,
        23,
        24.5,
        26,
        27.5,
        29,
        30.5,
        32,
        33.5,
        35,
        36.5,
        38,
        39.5,
        41,
        42.5,
        44,
        45.5,
        47,
        48.5,
        50,
        51.5,
        53,
        54.5,
        56,
        57.5,
        59
      ],
      "values": [
        0,
        -0.1,
        0.27,
        -0.5,
        0.08,
        -0.15,
        0.12,
        -0.17,
        0.12,
        -0.17,
        0.12,
        -0.17,
        0.12,
        -0.17,
        0.12,
        -0.17,
        0.12,
        -0.17,
        0.12,
        -0.17,
        0.12,
        -0.17,
        0.12,
        -0.17,
        0.12,
        -0.17,
        0.12,
        -0.17,
        0.12,
        -0.17,
        0.12,
        -0.17,
        0.12,
        -0.17,
        0.12,
        -0.17,
        0.12
      ]
    },
    {
      "type": "line",
      "title": "(o)",
      "xlabel": "t",
      "ylabel": "A$_{y}$",
      "color": "#6a8489",
      "xlim": [
        0,
        80
      ],
      "xticks": [
        0,
        20,
        40,
        60,
        80
      ],
      "ylim": [
        -1,
        1
      ],
      "yticks": [
        {
          "value": -1,
          "label": "−1.0"
        },
        {
          "value": -0.5,
          "label": "−0.5"
        },
        {
          "value": 0,
          "label": "0.0"
        },
        {
          "value": 0.5,
          "label": "0.5"
        },
        {
          "value": 1,
          "label": "1.0"
        }
      ],
      "x": [
        0,
        1,
        2,
        3,
        4,
        5,
        6,
        7,
        8,
        9,
        10,
        11,
        12,
        13,
        14,
        15,
        16,
        17,
        18,
        19,
        20,
        21,
        22,
        23,
        24,
        25,
        26,
        27,
        28,
        29,
        30,
        31,
        32,
        33,
        34,
        35,
        36,
        37,
        38,
        39,
        40,
        41,
        42,
        43,
        44,
        45,
        46,
        47,
        48,
        49,
        50,
        51,
        52,
        53,
        54,
        55,
        56,
        57,
        58,
        59,
        60,
        61,
        62,
        63,
        64,
        65,
        66,
        67,
        68,
        69,
        70,
        71,
        72,
        73,
        74,
        75,
        76,
        77,
        78,
        79,
        80
      ],
      "values": [
        0,
        -0.5,
        -0.7,
        -0.3,
        -0.75,
        -0.45,
        -0.8,
        -0.3,
        0.1,
        -0.18,
        0.1,
        -0.18,
        0.1,
        -0.18,
        0.1,
        -0.18,
        0.1,
        -0.18,
        0.1,
        -0.18,
        0.1,
        -0.18,
        0.1,
        -0.18,
        0.1,
        -0.18,
        0.1,
        -0.18,
        0.1,
        -0.18,
        0.1,
        -0.18,
        0.1,
        -0.18,
        0.1,
        -0.18,
        0.1,
        -0.18,
        0.1,
        -0.18,
        0.1,
        -0.18,
        0.1,
        -0.18,
        0.1,
        -0.18,
        0.1,
        -0.18,
        0.1,
        -0.18,
        0.1,
        -0.18,
        0.1,
        -0.18,
        0.1,
        -0.18,
        0.1,
        -0.18,
        0.1,
        -0.18,
        0.1,
        -0.18,
        0.1,
        -0.18,
        0.1,
        -0.18,
        0.1,
        -0.18,
        0.1,
        -0.18,
        0.1,
        -0.18,
        0.1,
        -0.18,
        0.1,
        -0.18,
        0.1,
        -0.18,
        0.1,
        -0.18,
        0.1
      ]
    }
  ]
}
